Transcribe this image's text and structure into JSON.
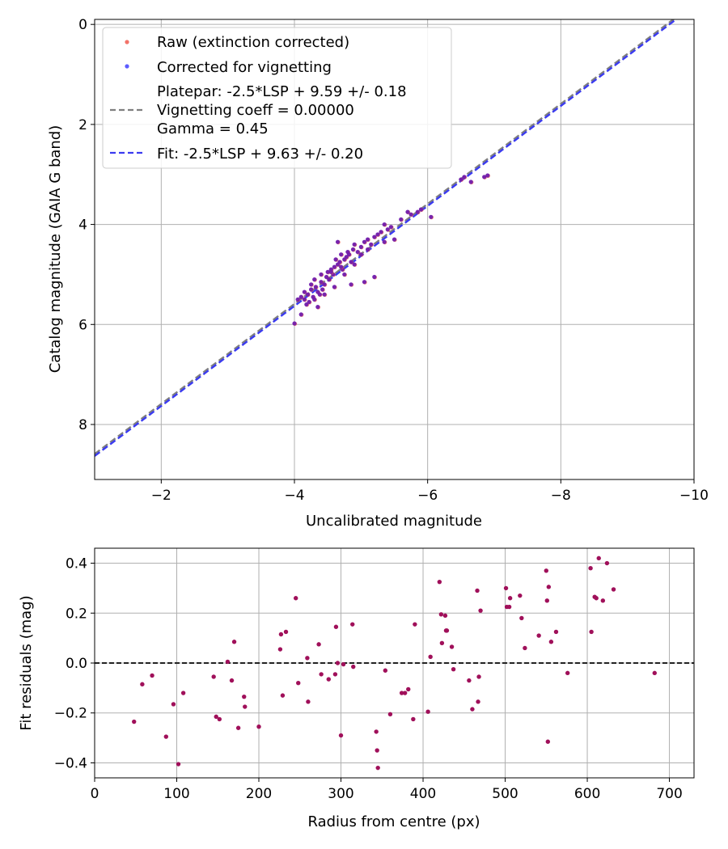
{
  "colors": {
    "raw": "#f05a4f",
    "corrected": "#4040ff",
    "overlap": "#6a1ab0",
    "platepar": "#7f7f7f",
    "fit": "#3b3bf0",
    "residual": "#a0105a",
    "grid": "#b0b0b0"
  },
  "chart_data": [
    {
      "id": "calibration",
      "type": "scatter",
      "xlabel": "Uncalibrated magnitude",
      "ylabel": "Catalog magnitude (GAIA G band)",
      "xlim": [
        -1.0,
        -10.0
      ],
      "ylim": [
        9.1,
        -0.1
      ],
      "x_ticks": [
        -2,
        -4,
        -6,
        -8,
        -10
      ],
      "x_tick_labels": [
        "−2",
        "−4",
        "−6",
        "−8",
        "−10"
      ],
      "y_ticks": [
        0,
        2,
        4,
        6,
        8
      ],
      "y_tick_labels": [
        "0",
        "2",
        "4",
        "6",
        "8"
      ],
      "grid": true,
      "legend": {
        "placement": "top-left",
        "raw": "Raw (extinction corrected)",
        "corrected": "Corrected for vignetting",
        "platepar_1": "Platepar: -2.5*LSP + 9.59 +/- 0.18",
        "platepar_2": "Vignetting coeff = 0.00000",
        "platepar_3": "Gamma = 0.45",
        "fit": "Fit: -2.5*LSP + 9.63 +/- 0.20"
      },
      "lines": [
        {
          "name": "Platepar",
          "intercept": 9.59,
          "x_range": [
            -1.0,
            -10.0
          ]
        },
        {
          "name": "Fit",
          "intercept": 9.63,
          "x_range": [
            -1.0,
            -10.0
          ]
        }
      ],
      "series": [
        {
          "name": "Points",
          "x": [
            -4.0,
            -4.05,
            -4.1,
            -4.15,
            -4.18,
            -4.2,
            -4.22,
            -4.25,
            -4.28,
            -4.3,
            -4.32,
            -4.35,
            -4.38,
            -4.4,
            -4.42,
            -4.45,
            -4.48,
            -4.5,
            -4.52,
            -4.55,
            -4.58,
            -4.6,
            -4.62,
            -4.65,
            -4.68,
            -4.7,
            -4.72,
            -4.75,
            -4.78,
            -4.8,
            -4.82,
            -4.85,
            -4.88,
            -4.9,
            -4.95,
            -5.0,
            -5.05,
            -5.1,
            -5.15,
            -5.2,
            -5.25,
            -5.3,
            -5.35,
            -5.4,
            -5.45,
            -5.5,
            -5.6,
            -5.7,
            -5.75,
            -5.85,
            -5.9,
            -6.05,
            -6.5,
            -6.55,
            -6.65,
            -6.85,
            -6.9,
            -4.1,
            -4.3,
            -4.45,
            -4.6,
            -4.75,
            -4.9,
            -5.05,
            -5.2,
            -4.35,
            -4.55,
            -4.7,
            -4.85,
            -5.0,
            -4.25,
            -4.65,
            -5.1,
            -5.35,
            -4.15,
            -4.4
          ],
          "y": [
            5.98,
            5.5,
            5.45,
            5.35,
            5.6,
            5.4,
            5.55,
            5.3,
            5.45,
            5.5,
            5.25,
            5.35,
            5.4,
            5.15,
            5.3,
            5.2,
            5.05,
            4.95,
            5.1,
            4.9,
            5.0,
            4.85,
            4.7,
            4.8,
            4.75,
            4.6,
            4.9,
            4.7,
            4.65,
            4.55,
            4.6,
            4.75,
            4.5,
            4.4,
            4.55,
            4.45,
            4.35,
            4.3,
            4.4,
            4.25,
            4.2,
            4.15,
            4.0,
            4.1,
            4.05,
            4.3,
            3.9,
            3.75,
            3.8,
            3.75,
            3.7,
            3.85,
            3.1,
            3.05,
            3.15,
            3.05,
            3.02,
            5.8,
            5.1,
            5.4,
            5.25,
            5.0,
            4.8,
            5.15,
            5.05,
            5.65,
            4.95,
            4.85,
            5.2,
            4.6,
            5.2,
            4.35,
            4.5,
            4.35,
            5.5,
            5.0
          ]
        }
      ]
    },
    {
      "id": "residuals",
      "type": "scatter",
      "xlabel": "Radius from centre (px)",
      "ylabel": "Fit residuals (mag)",
      "xlim": [
        0,
        730
      ],
      "ylim": [
        -0.46,
        0.46
      ],
      "x_ticks": [
        0,
        100,
        200,
        300,
        400,
        500,
        600,
        700
      ],
      "x_tick_labels": [
        "0",
        "100",
        "200",
        "300",
        "400",
        "500",
        "600",
        "700"
      ],
      "y_ticks": [
        -0.4,
        -0.2,
        0.0,
        0.2,
        0.4
      ],
      "y_tick_labels": [
        "−0.4",
        "−0.2",
        "0.0",
        "0.2",
        "0.4"
      ],
      "grid": true,
      "zero_line": 0.0,
      "series": [
        {
          "name": "Residuals",
          "x": [
            48,
            58,
            70,
            87,
            96,
            102,
            108,
            145,
            148,
            152,
            162,
            167,
            170,
            175,
            182,
            183,
            200,
            226,
            227,
            229,
            233,
            245,
            248,
            259,
            260,
            273,
            276,
            285,
            293,
            294,
            296,
            300,
            303,
            314,
            315,
            343,
            344,
            345,
            354,
            360,
            374,
            378,
            382,
            388,
            390,
            406,
            409,
            420,
            422,
            423,
            427,
            428,
            429,
            435,
            437,
            456,
            460,
            466,
            467,
            468,
            470,
            501,
            502,
            505,
            506,
            518,
            520,
            524,
            541,
            550,
            551,
            552,
            553,
            556,
            562,
            576,
            604,
            605,
            609,
            611,
            614,
            619,
            624,
            632,
            682
          ],
          "y": [
            -0.235,
            -0.085,
            -0.05,
            -0.295,
            -0.165,
            -0.405,
            -0.12,
            -0.055,
            -0.215,
            -0.225,
            0.005,
            -0.07,
            0.085,
            -0.26,
            -0.135,
            -0.175,
            -0.255,
            0.055,
            0.115,
            -0.13,
            0.125,
            0.26,
            -0.08,
            0.02,
            -0.155,
            0.075,
            -0.045,
            -0.065,
            -0.045,
            0.145,
            0.0,
            -0.29,
            -0.005,
            0.155,
            -0.015,
            -0.275,
            -0.35,
            -0.42,
            -0.03,
            -0.205,
            -0.12,
            -0.12,
            -0.105,
            -0.225,
            0.155,
            -0.195,
            0.025,
            0.325,
            0.195,
            0.08,
            0.19,
            0.13,
            0.13,
            0.065,
            -0.025,
            -0.07,
            -0.185,
            0.29,
            -0.155,
            -0.055,
            0.21,
            0.3,
            0.225,
            0.225,
            0.26,
            0.27,
            0.18,
            0.06,
            0.11,
            0.37,
            0.25,
            -0.315,
            0.305,
            0.085,
            0.125,
            -0.04,
            0.38,
            0.125,
            0.265,
            0.26,
            0.42,
            0.25,
            0.4,
            0.295,
            -0.04
          ]
        }
      ]
    }
  ]
}
